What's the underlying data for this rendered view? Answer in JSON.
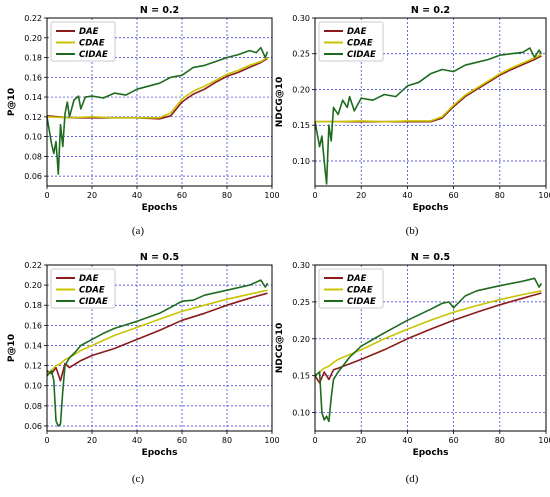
{
  "figure": {
    "captions": [
      "(a)",
      "(b)",
      "(c)",
      "(d)"
    ]
  },
  "colors": {
    "DAE": "#8b1a1a",
    "CDAE": "#c9c400",
    "CIDAE": "#1e6b1e",
    "grid": "#2b2bd6"
  },
  "chart_data": [
    {
      "type": "line",
      "title": "N = 0.2",
      "xlabel": "Epochs",
      "ylabel": "P@10",
      "xlim": [
        0,
        100
      ],
      "ylim": [
        0.05,
        0.22
      ],
      "xticks": [
        0,
        20,
        40,
        60,
        80,
        100
      ],
      "yticks": [
        0.06,
        0.08,
        0.1,
        0.12,
        0.14,
        0.16,
        0.18,
        0.2,
        0.22
      ],
      "ytick_labels": [
        "0.06",
        "0.08",
        "0.10",
        "0.12",
        "0.14",
        "0.16",
        "0.18",
        "0.20",
        "0.22"
      ],
      "grid": true,
      "legend_position": "upper-left",
      "series": [
        {
          "name": "DAE",
          "x": [
            0,
            10,
            20,
            30,
            40,
            50,
            55,
            60,
            65,
            70,
            75,
            80,
            85,
            90,
            95,
            98
          ],
          "y": [
            0.121,
            0.119,
            0.119,
            0.119,
            0.119,
            0.118,
            0.121,
            0.135,
            0.143,
            0.148,
            0.155,
            0.161,
            0.165,
            0.17,
            0.175,
            0.179
          ]
        },
        {
          "name": "CDAE",
          "x": [
            0,
            10,
            20,
            30,
            40,
            50,
            55,
            60,
            65,
            70,
            75,
            80,
            85,
            90,
            95,
            98
          ],
          "y": [
            0.12,
            0.119,
            0.12,
            0.119,
            0.119,
            0.119,
            0.124,
            0.138,
            0.146,
            0.151,
            0.157,
            0.163,
            0.167,
            0.172,
            0.176,
            0.18
          ]
        },
        {
          "name": "CIDAE",
          "x": [
            0,
            2,
            3,
            4,
            5,
            6,
            7,
            8,
            9,
            10,
            12,
            14,
            15,
            17,
            20,
            25,
            30,
            35,
            40,
            45,
            50,
            55,
            60,
            65,
            70,
            75,
            80,
            85,
            90,
            93,
            95,
            97,
            98
          ],
          "y": [
            0.12,
            0.093,
            0.083,
            0.095,
            0.062,
            0.112,
            0.09,
            0.123,
            0.135,
            0.12,
            0.137,
            0.141,
            0.128,
            0.14,
            0.141,
            0.139,
            0.144,
            0.142,
            0.148,
            0.151,
            0.154,
            0.16,
            0.162,
            0.17,
            0.172,
            0.176,
            0.18,
            0.183,
            0.187,
            0.185,
            0.19,
            0.18,
            0.186
          ]
        }
      ]
    },
    {
      "type": "line",
      "title": "N = 0.2",
      "xlabel": "Epochs",
      "ylabel": "NDCG@10",
      "xlim": [
        0,
        100
      ],
      "ylim": [
        0.065,
        0.3
      ],
      "xticks": [
        0,
        20,
        40,
        60,
        80,
        100
      ],
      "yticks": [
        0.1,
        0.15,
        0.2,
        0.25,
        0.3
      ],
      "ytick_labels": [
        "0.10",
        "0.15",
        "0.20",
        "0.25",
        "0.30"
      ],
      "grid": true,
      "legend_position": "upper-left",
      "series": [
        {
          "name": "DAE",
          "x": [
            0,
            10,
            20,
            30,
            40,
            50,
            55,
            60,
            65,
            70,
            75,
            80,
            85,
            90,
            95,
            98
          ],
          "y": [
            0.155,
            0.155,
            0.155,
            0.155,
            0.155,
            0.155,
            0.16,
            0.176,
            0.19,
            0.2,
            0.21,
            0.22,
            0.228,
            0.235,
            0.242,
            0.247
          ]
        },
        {
          "name": "CDAE",
          "x": [
            0,
            10,
            20,
            30,
            40,
            50,
            55,
            60,
            65,
            70,
            75,
            80,
            85,
            90,
            95,
            98
          ],
          "y": [
            0.155,
            0.155,
            0.156,
            0.155,
            0.156,
            0.156,
            0.162,
            0.178,
            0.192,
            0.202,
            0.212,
            0.222,
            0.23,
            0.237,
            0.244,
            0.249
          ]
        },
        {
          "name": "CIDAE",
          "x": [
            0,
            2,
            3,
            4,
            5,
            6,
            7,
            8,
            10,
            12,
            14,
            15,
            17,
            20,
            25,
            30,
            35,
            40,
            45,
            50,
            55,
            60,
            65,
            70,
            75,
            80,
            85,
            90,
            93,
            95,
            97,
            98
          ],
          "y": [
            0.155,
            0.12,
            0.135,
            0.1,
            0.068,
            0.15,
            0.128,
            0.175,
            0.165,
            0.185,
            0.175,
            0.19,
            0.17,
            0.188,
            0.185,
            0.193,
            0.19,
            0.205,
            0.21,
            0.222,
            0.228,
            0.225,
            0.234,
            0.238,
            0.242,
            0.248,
            0.25,
            0.252,
            0.258,
            0.245,
            0.255,
            0.25
          ]
        }
      ]
    },
    {
      "type": "line",
      "title": "N = 0.5",
      "xlabel": "Epochs",
      "ylabel": "P@10",
      "xlim": [
        0,
        100
      ],
      "ylim": [
        0.055,
        0.22
      ],
      "xticks": [
        0,
        20,
        40,
        60,
        80,
        100
      ],
      "yticks": [
        0.06,
        0.08,
        0.1,
        0.12,
        0.14,
        0.16,
        0.18,
        0.2,
        0.22
      ],
      "ytick_labels": [
        "0.06",
        "0.08",
        "0.10",
        "0.12",
        "0.14",
        "0.16",
        "0.18",
        "0.20",
        "0.22"
      ],
      "grid": true,
      "legend_position": "upper-left",
      "series": [
        {
          "name": "DAE",
          "x": [
            0,
            2,
            4,
            6,
            8,
            10,
            15,
            20,
            30,
            40,
            50,
            60,
            70,
            80,
            90,
            98
          ],
          "y": [
            0.115,
            0.112,
            0.118,
            0.105,
            0.122,
            0.118,
            0.125,
            0.13,
            0.137,
            0.146,
            0.155,
            0.165,
            0.172,
            0.18,
            0.187,
            0.192
          ]
        },
        {
          "name": "CDAE",
          "x": [
            0,
            2,
            4,
            6,
            8,
            10,
            15,
            20,
            30,
            40,
            50,
            60,
            70,
            80,
            90,
            98
          ],
          "y": [
            0.112,
            0.115,
            0.12,
            0.122,
            0.126,
            0.128,
            0.135,
            0.14,
            0.15,
            0.158,
            0.166,
            0.174,
            0.18,
            0.186,
            0.191,
            0.195
          ]
        },
        {
          "name": "CIDAE",
          "x": [
            0,
            2,
            3,
            4,
            5,
            6,
            7,
            8,
            10,
            12,
            15,
            20,
            25,
            30,
            40,
            50,
            55,
            60,
            65,
            70,
            80,
            90,
            95,
            97,
            98
          ],
          "y": [
            0.11,
            0.115,
            0.105,
            0.065,
            0.06,
            0.062,
            0.095,
            0.12,
            0.128,
            0.132,
            0.14,
            0.146,
            0.152,
            0.157,
            0.164,
            0.172,
            0.178,
            0.184,
            0.185,
            0.19,
            0.195,
            0.2,
            0.205,
            0.198,
            0.202
          ]
        }
      ]
    },
    {
      "type": "line",
      "title": "N = 0.5",
      "xlabel": "Epochs",
      "ylabel": "NDCG@10",
      "xlim": [
        0,
        100
      ],
      "ylim": [
        0.075,
        0.3
      ],
      "xticks": [
        0,
        20,
        40,
        60,
        80,
        100
      ],
      "yticks": [
        0.1,
        0.15,
        0.2,
        0.25,
        0.3
      ],
      "ytick_labels": [
        "0.10",
        "0.15",
        "0.20",
        "0.25",
        "0.30"
      ],
      "grid": true,
      "legend_position": "upper-left",
      "series": [
        {
          "name": "DAE",
          "x": [
            0,
            2,
            4,
            6,
            8,
            10,
            20,
            30,
            40,
            50,
            60,
            70,
            80,
            90,
            98
          ],
          "y": [
            0.15,
            0.14,
            0.155,
            0.145,
            0.158,
            0.16,
            0.172,
            0.185,
            0.2,
            0.213,
            0.225,
            0.236,
            0.246,
            0.255,
            0.262
          ]
        },
        {
          "name": "CDAE",
          "x": [
            0,
            2,
            4,
            6,
            8,
            10,
            20,
            30,
            40,
            50,
            60,
            70,
            80,
            90,
            98
          ],
          "y": [
            0.15,
            0.155,
            0.16,
            0.163,
            0.168,
            0.172,
            0.185,
            0.2,
            0.213,
            0.225,
            0.236,
            0.245,
            0.253,
            0.26,
            0.265
          ]
        },
        {
          "name": "CIDAE",
          "x": [
            0,
            2,
            3,
            4,
            5,
            6,
            7,
            8,
            10,
            15,
            20,
            30,
            40,
            50,
            55,
            58,
            60,
            65,
            70,
            80,
            90,
            95,
            97,
            98
          ],
          "y": [
            0.15,
            0.155,
            0.1,
            0.09,
            0.095,
            0.088,
            0.12,
            0.145,
            0.155,
            0.175,
            0.19,
            0.208,
            0.225,
            0.24,
            0.248,
            0.25,
            0.242,
            0.258,
            0.265,
            0.272,
            0.278,
            0.282,
            0.27,
            0.275
          ]
        }
      ]
    }
  ]
}
